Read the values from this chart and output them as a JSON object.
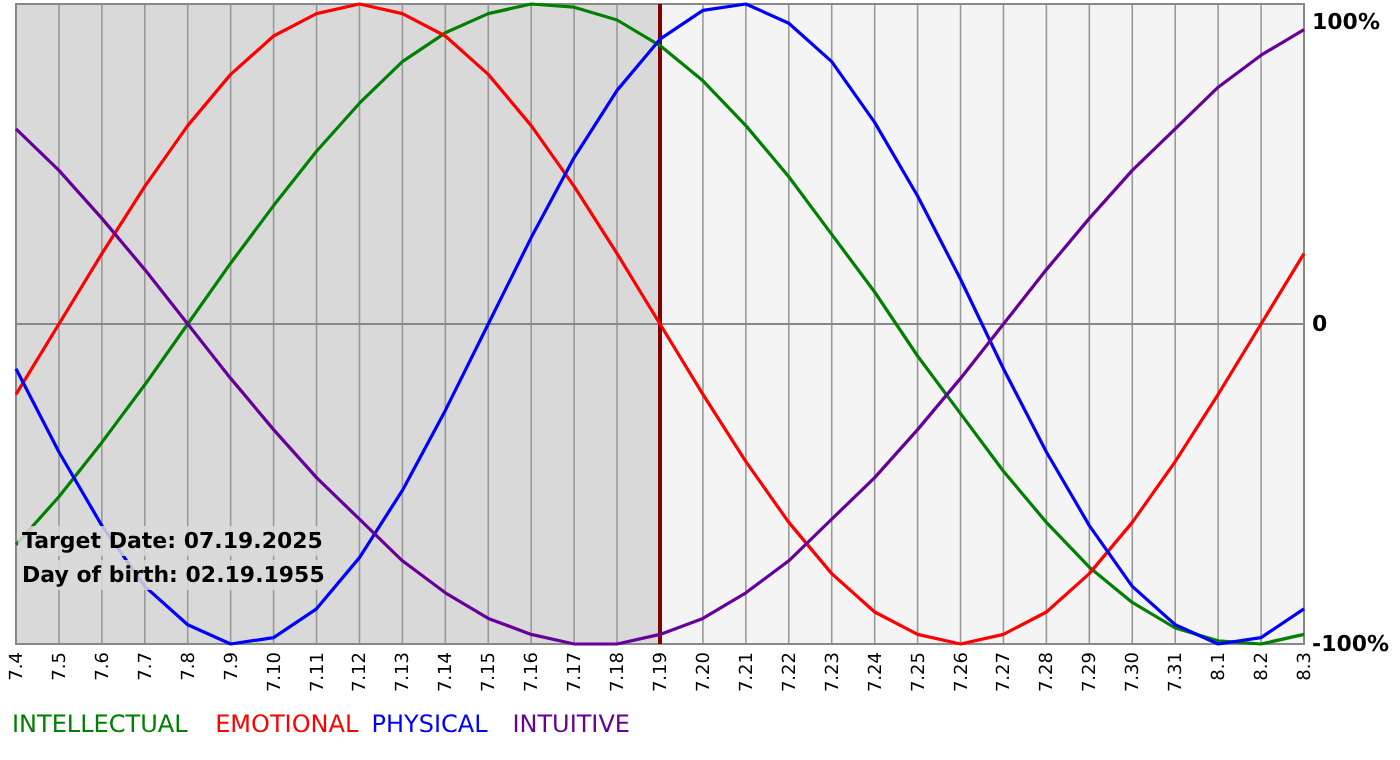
{
  "chart_data": {
    "type": "line",
    "categories": [
      "7.4",
      "7.5",
      "7.6",
      "7.7",
      "7.8",
      "7.9",
      "7.10",
      "7.11",
      "7.12",
      "7.13",
      "7.14",
      "7.15",
      "7.16",
      "7.17",
      "7.18",
      "7.19",
      "7.20",
      "7.21",
      "7.22",
      "7.23",
      "7.24",
      "7.25",
      "7.26",
      "7.27",
      "7.28",
      "7.29",
      "7.30",
      "7.31",
      "8.1",
      "8.2",
      "8.3"
    ],
    "series": [
      {
        "name": "INTELLECTUAL",
        "color": "#008000",
        "values": [
          -69,
          -54,
          -37,
          -19,
          0,
          19,
          37,
          54,
          69,
          82,
          91,
          97,
          100,
          99,
          95,
          87,
          76,
          62,
          46,
          28,
          10,
          -10,
          -28,
          -46,
          -62,
          -76,
          -87,
          -95,
          -99,
          -100,
          -97
        ]
      },
      {
        "name": "EMOTIONAL",
        "color": "#ff0000",
        "values": [
          -22,
          0,
          22,
          43,
          62,
          78,
          90,
          97,
          100,
          97,
          90,
          78,
          62,
          43,
          22,
          0,
          -22,
          -43,
          -62,
          -78,
          -90,
          -97,
          -100,
          -97,
          -90,
          -78,
          -62,
          -43,
          -22,
          0,
          22
        ]
      },
      {
        "name": "PHYSICAL",
        "color": "#0000ff",
        "values": [
          -14,
          -40,
          -63,
          -82,
          -94,
          -100,
          -98,
          -89,
          -73,
          -52,
          -27,
          0,
          27,
          52,
          73,
          89,
          98,
          100,
          94,
          82,
          63,
          40,
          14,
          -14,
          -40,
          -63,
          -82,
          -94,
          -100,
          -98,
          -89
        ]
      },
      {
        "name": "INTUITIVE",
        "color": "#660099",
        "values": [
          61,
          48,
          33,
          17,
          0,
          -17,
          -33,
          -48,
          -61,
          -74,
          -84,
          -92,
          -97,
          -100,
          -100,
          -97,
          -92,
          -84,
          -74,
          -61,
          -48,
          -33,
          -17,
          0,
          17,
          33,
          48,
          61,
          74,
          84,
          92
        ]
      }
    ],
    "ylim": [
      -100,
      100
    ],
    "yticks": [
      {
        "value": 100,
        "label": "100%"
      },
      0,
      {
        "value": -100,
        "label": "-100%"
      }
    ],
    "grid": true,
    "legend": "bottom left",
    "ref_lines": [
      {
        "axis": "x",
        "value": "7.19",
        "color": "#800000"
      }
    ],
    "bands": [
      {
        "axis": "x",
        "from": "7.4",
        "to": "7.19",
        "color": "#d9d9d9"
      }
    ],
    "annotations": [
      "Target Date: 07.19.2025",
      "Day of birth: 02.19.1955"
    ]
  }
}
